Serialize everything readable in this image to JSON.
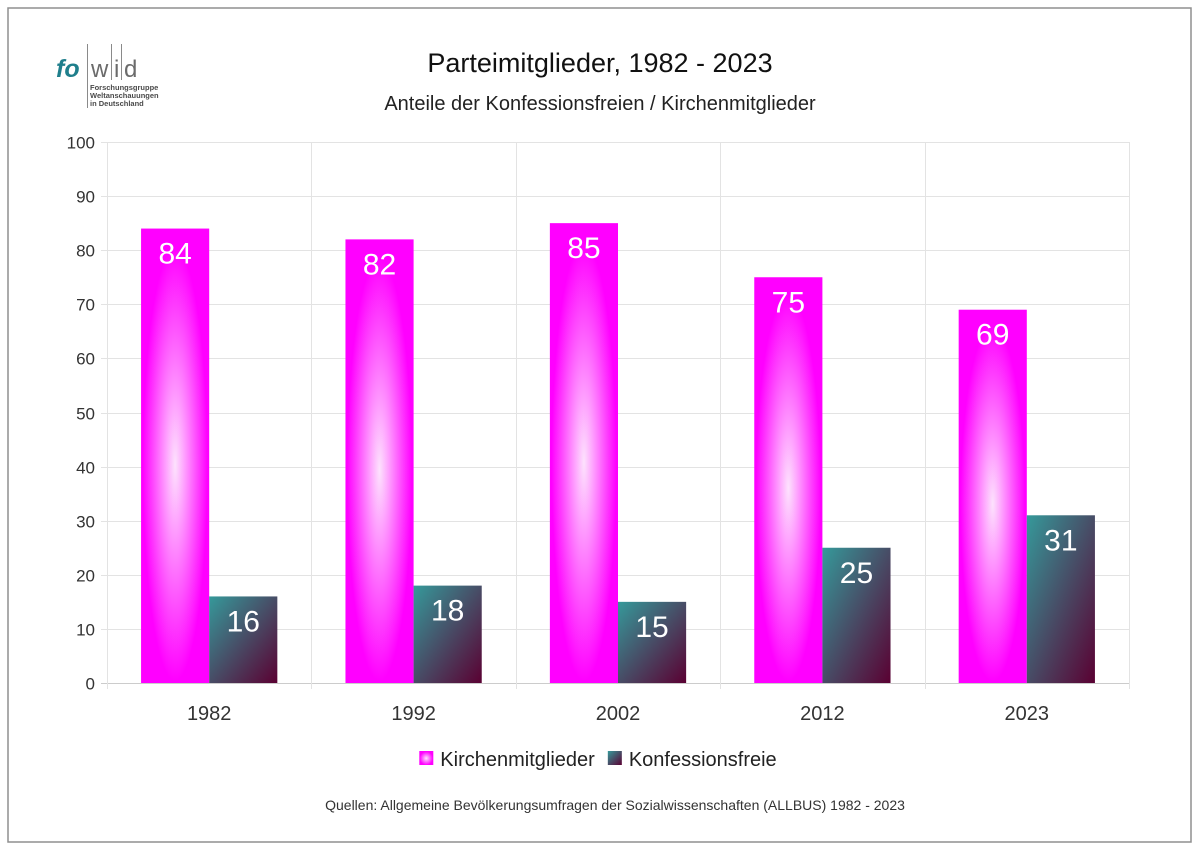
{
  "logo": {
    "letters_left": "fo",
    "letters_right": [
      "w",
      "i",
      "d"
    ],
    "tagline": [
      "Forschungsgruppe",
      "Weltanschauungen",
      "in Deutschland"
    ],
    "brand_color": "#1f7f8c"
  },
  "chart_data": {
    "type": "bar",
    "title": "Parteimitglieder, 1982 - 2023",
    "subtitle": "Anteile der Konfessionsfreien / Kirchenmitglieder",
    "categories": [
      "1982",
      "1992",
      "2002",
      "2012",
      "2023"
    ],
    "series": [
      {
        "name": "Kirchenmitglieder",
        "values": [
          84,
          82,
          85,
          75,
          69
        ],
        "color": "#ff00ff",
        "highlight_color": "#fde2fd",
        "fill_style": "radial"
      },
      {
        "name": "Konfessionsfreie",
        "values": [
          16,
          18,
          15,
          25,
          31
        ],
        "color": "#35999a",
        "shade_color": "#5a0032",
        "fill_style": "diagonal"
      }
    ],
    "ylim": [
      0,
      100
    ],
    "yticks": [
      0,
      10,
      20,
      30,
      40,
      50,
      60,
      70,
      80,
      90,
      100
    ],
    "grid": true,
    "legend_position": "bottom",
    "data_labels": "inside-top",
    "source": "Quellen: Allgemeine Bevölkerungsumfragen der Sozialwissenschaften (ALLBUS) 1982 - 2023"
  }
}
